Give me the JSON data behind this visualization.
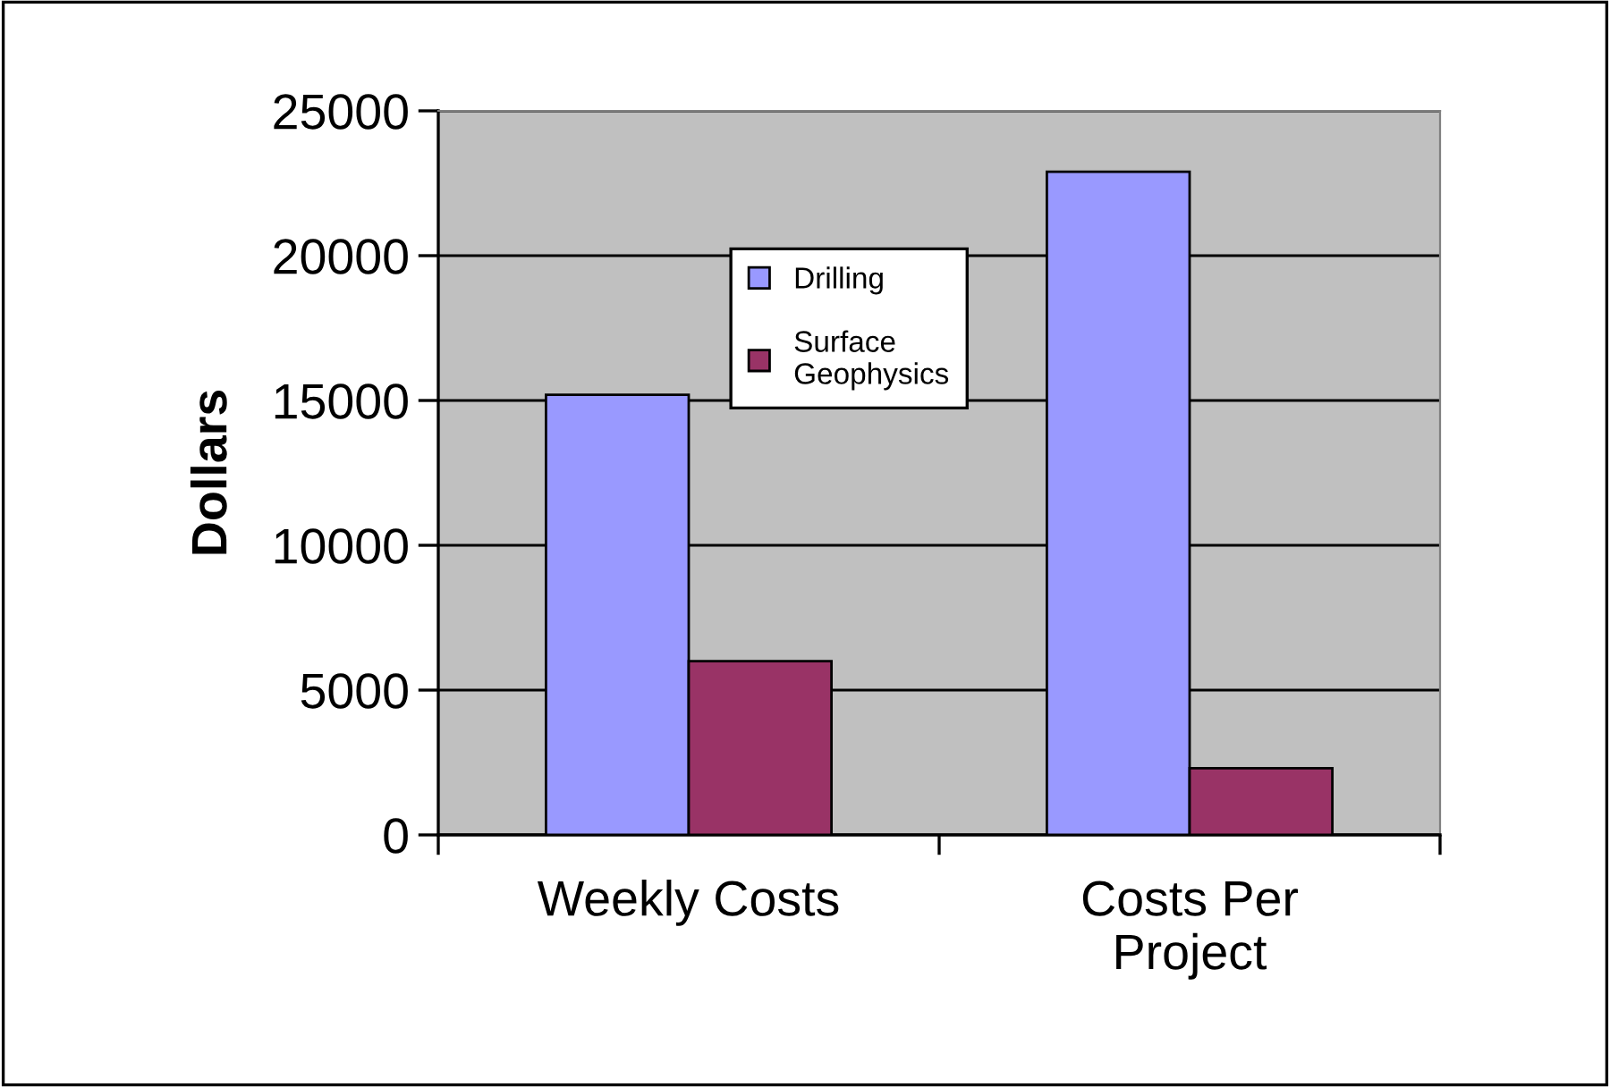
{
  "chart_data": {
    "type": "bar",
    "ylabel": "Dollars",
    "categories": [
      "Weekly Costs",
      "Costs Per\nProject"
    ],
    "series": [
      {
        "name": "Drilling",
        "color": "#9999ff",
        "values": [
          15200,
          22900
        ]
      },
      {
        "name": "Surface\nGeophysics",
        "color": "#993366",
        "values": [
          6000,
          2300
        ]
      }
    ],
    "ylim": [
      0,
      25000
    ],
    "yticks": [
      0,
      5000,
      10000,
      15000,
      20000,
      25000
    ],
    "grid": "y",
    "legend": "top"
  }
}
